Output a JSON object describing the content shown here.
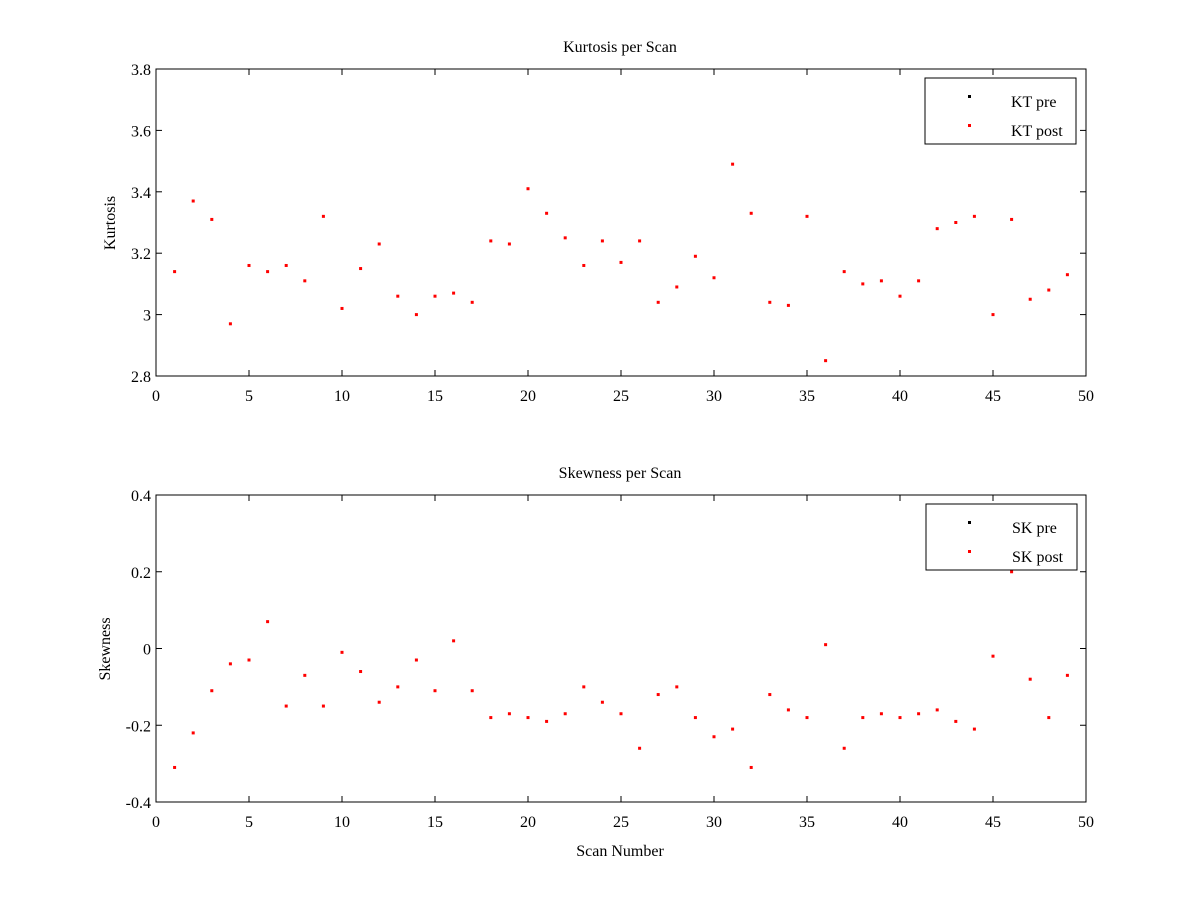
{
  "figure": {
    "background": "#ffffff"
  },
  "chart_data": [
    {
      "type": "scatter",
      "title": "Kurtosis per Scan",
      "xlabel": "",
      "ylabel": "Kurtosis",
      "xlim": [
        0,
        50
      ],
      "ylim": [
        2.8,
        3.8
      ],
      "xticks": [
        0,
        5,
        10,
        15,
        20,
        25,
        30,
        35,
        40,
        45,
        50
      ],
      "yticks": [
        2.8,
        3,
        3.2,
        3.4,
        3.6,
        3.8
      ],
      "xtick_labels": [
        "0",
        "5",
        "10",
        "15",
        "20",
        "25",
        "30",
        "35",
        "40",
        "45",
        "50"
      ],
      "ytick_labels": [
        "2.8",
        "3",
        "3.2",
        "3.4",
        "3.6",
        "3.8"
      ],
      "grid": false,
      "legend_position": "top-right",
      "series": [
        {
          "name": "KT pre",
          "color": "#000000",
          "x": [],
          "y": []
        },
        {
          "name": "KT post",
          "color": "#ff0000",
          "x": [
            1,
            2,
            3,
            4,
            5,
            6,
            7,
            8,
            9,
            10,
            11,
            12,
            13,
            14,
            15,
            16,
            17,
            18,
            19,
            20,
            21,
            22,
            23,
            24,
            25,
            26,
            27,
            28,
            29,
            30,
            31,
            32,
            33,
            34,
            35,
            36,
            37,
            38,
            39,
            40,
            41,
            42,
            43,
            44,
            45,
            46,
            47,
            48,
            49
          ],
          "y": [
            3.14,
            3.37,
            3.31,
            2.97,
            3.16,
            3.14,
            3.16,
            3.11,
            3.32,
            3.02,
            3.15,
            3.23,
            3.06,
            3.0,
            3.06,
            3.07,
            3.04,
            3.24,
            3.23,
            3.41,
            3.33,
            3.25,
            3.16,
            3.24,
            3.17,
            3.24,
            3.04,
            3.09,
            3.19,
            3.12,
            3.49,
            3.33,
            3.04,
            3.03,
            3.32,
            2.85,
            3.14,
            3.1,
            3.11,
            3.06,
            3.11,
            3.28,
            3.3,
            3.32,
            3.0,
            3.31,
            3.05,
            3.08,
            3.13
          ]
        }
      ]
    },
    {
      "type": "scatter",
      "title": "Skewness per Scan",
      "xlabel": "Scan Number",
      "ylabel": "Skewness",
      "xlim": [
        0,
        50
      ],
      "ylim": [
        -0.4,
        0.4
      ],
      "xticks": [
        0,
        5,
        10,
        15,
        20,
        25,
        30,
        35,
        40,
        45,
        50
      ],
      "yticks": [
        -0.4,
        -0.2,
        0,
        0.2,
        0.4
      ],
      "xtick_labels": [
        "0",
        "5",
        "10",
        "15",
        "20",
        "25",
        "30",
        "35",
        "40",
        "45",
        "50"
      ],
      "ytick_labels": [
        "-0.4",
        "-0.2",
        "0",
        "0.2",
        "0.4"
      ],
      "grid": false,
      "legend_position": "top-right",
      "series": [
        {
          "name": "SK pre",
          "color": "#000000",
          "x": [],
          "y": []
        },
        {
          "name": "SK post",
          "color": "#ff0000",
          "x": [
            1,
            2,
            3,
            4,
            5,
            6,
            7,
            8,
            9,
            10,
            11,
            12,
            13,
            14,
            15,
            16,
            17,
            18,
            19,
            20,
            21,
            22,
            23,
            24,
            25,
            26,
            27,
            28,
            29,
            30,
            31,
            32,
            33,
            34,
            35,
            36,
            37,
            38,
            39,
            40,
            41,
            42,
            43,
            44,
            45,
            46,
            47,
            48,
            49
          ],
          "y": [
            -0.31,
            -0.22,
            -0.11,
            -0.04,
            -0.03,
            0.07,
            -0.15,
            -0.07,
            -0.15,
            -0.01,
            -0.06,
            -0.14,
            -0.1,
            -0.03,
            -0.11,
            0.02,
            -0.11,
            -0.18,
            -0.17,
            -0.18,
            -0.19,
            -0.17,
            -0.1,
            -0.14,
            -0.17,
            -0.26,
            -0.12,
            -0.1,
            -0.18,
            -0.23,
            -0.21,
            -0.31,
            -0.12,
            -0.16,
            -0.18,
            0.01,
            -0.26,
            -0.18,
            -0.17,
            -0.18,
            -0.17,
            -0.16,
            -0.19,
            -0.21,
            -0.02,
            0.2,
            -0.08,
            -0.18,
            -0.07
          ]
        }
      ]
    }
  ]
}
